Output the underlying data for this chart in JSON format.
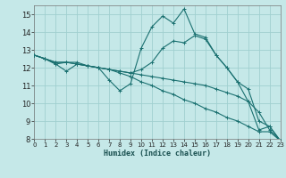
{
  "xlabel": "Humidex (Indice chaleur)",
  "bg_color": "#c5e8e8",
  "grid_color": "#a0d0d0",
  "line_color": "#1a7070",
  "xlim": [
    0,
    23
  ],
  "ylim": [
    8,
    15.5
  ],
  "yticks": [
    8,
    9,
    10,
    11,
    12,
    13,
    14,
    15
  ],
  "xticks": [
    0,
    1,
    2,
    3,
    4,
    5,
    6,
    7,
    8,
    9,
    10,
    11,
    12,
    13,
    14,
    15,
    16,
    17,
    18,
    19,
    20,
    21,
    22,
    23
  ],
  "lines": [
    {
      "x": [
        0,
        1,
        2,
        3,
        4,
        5,
        6,
        7,
        8,
        9,
        10,
        11,
        12,
        13,
        14,
        15,
        16,
        17,
        18,
        19,
        20,
        21,
        22,
        23
      ],
      "y": [
        12.7,
        12.5,
        12.2,
        11.8,
        12.2,
        12.1,
        12.0,
        11.3,
        10.7,
        11.1,
        13.1,
        14.3,
        14.9,
        14.5,
        15.3,
        13.9,
        13.7,
        12.7,
        12.0,
        11.2,
        10.1,
        8.5,
        8.7,
        7.9
      ]
    },
    {
      "x": [
        0,
        1,
        2,
        3,
        4,
        5,
        6,
        7,
        8,
        9,
        10,
        11,
        12,
        13,
        14,
        15,
        16,
        17,
        18,
        19,
        20,
        21,
        22,
        23
      ],
      "y": [
        12.7,
        12.5,
        12.2,
        12.3,
        12.3,
        12.1,
        12.0,
        11.9,
        11.8,
        11.7,
        11.9,
        12.3,
        13.1,
        13.5,
        13.4,
        13.8,
        13.6,
        12.7,
        12.0,
        11.2,
        10.8,
        9.0,
        8.7,
        7.9
      ]
    },
    {
      "x": [
        0,
        1,
        2,
        3,
        4,
        5,
        6,
        7,
        8,
        9,
        10,
        11,
        12,
        13,
        14,
        15,
        16,
        17,
        18,
        19,
        20,
        21,
        22,
        23
      ],
      "y": [
        12.7,
        12.5,
        12.3,
        12.3,
        12.2,
        12.1,
        12.0,
        11.9,
        11.8,
        11.7,
        11.6,
        11.5,
        11.4,
        11.3,
        11.2,
        11.1,
        11.0,
        10.8,
        10.6,
        10.4,
        10.1,
        9.5,
        8.5,
        7.9
      ]
    },
    {
      "x": [
        0,
        1,
        2,
        3,
        4,
        5,
        6,
        7,
        8,
        9,
        10,
        11,
        12,
        13,
        14,
        15,
        16,
        17,
        18,
        19,
        20,
        21,
        22,
        23
      ],
      "y": [
        12.7,
        12.5,
        12.3,
        12.3,
        12.2,
        12.1,
        12.0,
        11.9,
        11.7,
        11.5,
        11.2,
        11.0,
        10.7,
        10.5,
        10.2,
        10.0,
        9.7,
        9.5,
        9.2,
        9.0,
        8.7,
        8.4,
        8.4,
        7.9
      ]
    }
  ]
}
